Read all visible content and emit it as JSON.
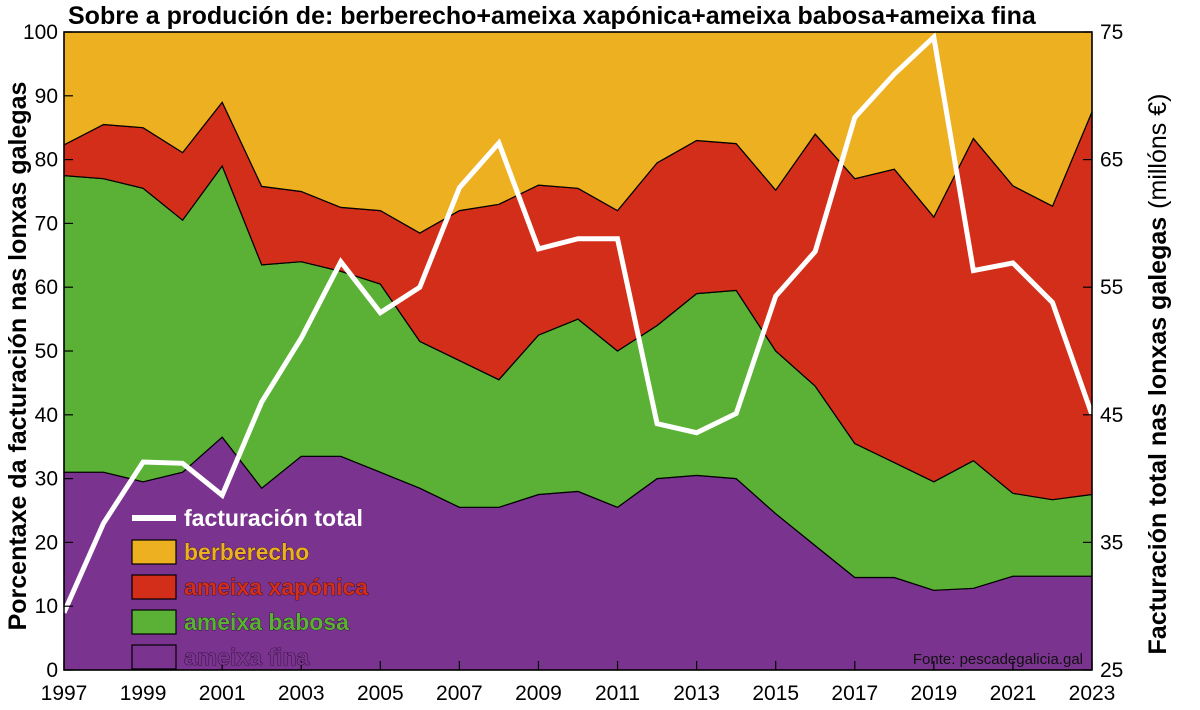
{
  "chart_data": {
    "type": "area",
    "title": "Sobre a produción de: berberecho+ameixa xapónica+ameixa babosa+ameixa fina",
    "ylabel": "Porcentaxe da facturación nas lonxas galegas",
    "y2label": "Facturación total nas lonxas galegas",
    "y2unit": "(millóns €)",
    "source": "Fonte: pescadegalicia.gal",
    "legend_position": "bottom-left",
    "grid": false,
    "stacked": true,
    "xlim": [
      1997,
      2023
    ],
    "ylim": [
      0,
      100
    ],
    "y2lim": [
      25,
      75
    ],
    "xticks": [
      "1997",
      "1999",
      "2001",
      "2003",
      "2005",
      "2007",
      "2009",
      "2011",
      "2013",
      "2015",
      "2017",
      "2019",
      "2021",
      "2023"
    ],
    "yticks": [
      "0",
      "10",
      "20",
      "30",
      "40",
      "50",
      "60",
      "70",
      "80",
      "90",
      "100"
    ],
    "y2ticks": [
      "25",
      "35",
      "45",
      "55",
      "65",
      "75"
    ],
    "x": [
      1997,
      1998,
      1999,
      2000,
      2001,
      2002,
      2003,
      2004,
      2005,
      2006,
      2007,
      2008,
      2009,
      2010,
      2011,
      2012,
      2013,
      2014,
      2015,
      2016,
      2017,
      2018,
      2019,
      2020,
      2021,
      2022,
      2023
    ],
    "series": [
      {
        "name": "ameixa fina",
        "color": "#7b3390",
        "values": [
          31.0,
          31.0,
          29.5,
          31.0,
          36.5,
          28.5,
          33.5,
          33.5,
          31.0,
          28.5,
          25.5,
          25.5,
          27.5,
          28.0,
          25.5,
          30.0,
          30.5,
          30.0,
          24.5,
          19.5,
          14.5,
          14.5,
          12.5,
          12.8,
          14.7,
          14.7,
          14.7
        ]
      },
      {
        "name": "ameixa babosa",
        "color": "#5bb135",
        "values": [
          46.5,
          46.0,
          46.0,
          39.5,
          42.5,
          35.0,
          30.5,
          29.0,
          29.5,
          23.0,
          23.0,
          20.0,
          25.0,
          27.0,
          24.5,
          24.0,
          28.5,
          29.5,
          25.5,
          25.0,
          21.0,
          18.0,
          17.0,
          20.0,
          13.0,
          12.0,
          12.8
        ]
      },
      {
        "name": "ameixa xapónica",
        "color": "#d22e1a",
        "values": [
          4.8,
          8.5,
          9.5,
          10.6,
          10.0,
          12.3,
          11.0,
          10.0,
          11.5,
          17.0,
          23.5,
          27.5,
          23.5,
          20.5,
          22.0,
          25.5,
          24.0,
          23.0,
          25.2,
          39.5,
          41.5,
          46.0,
          41.5,
          50.5,
          48.2,
          46.0,
          60.0
        ]
      },
      {
        "name": "berberecho",
        "color": "#edb020",
        "values": [
          17.7,
          14.5,
          15.0,
          18.9,
          11.0,
          24.2,
          25.0,
          27.5,
          28.0,
          31.5,
          28.0,
          27.0,
          24.0,
          24.5,
          28.0,
          20.5,
          17.0,
          17.5,
          24.8,
          16.0,
          23.0,
          21.5,
          29.0,
          16.7,
          24.1,
          27.3,
          12.5
        ]
      }
    ],
    "line": {
      "name": "facturación total",
      "color": "#ffffff",
      "values": [
        29.5,
        36.5,
        41.3,
        41.2,
        38.7,
        46.0,
        51.0,
        57.0,
        53.0,
        55.0,
        62.8,
        66.3,
        58.0,
        58.8,
        58.8,
        44.3,
        43.6,
        45.1,
        54.3,
        57.8,
        68.3,
        71.7,
        74.6,
        56.3,
        56.9,
        53.8,
        45.0
      ]
    }
  }
}
